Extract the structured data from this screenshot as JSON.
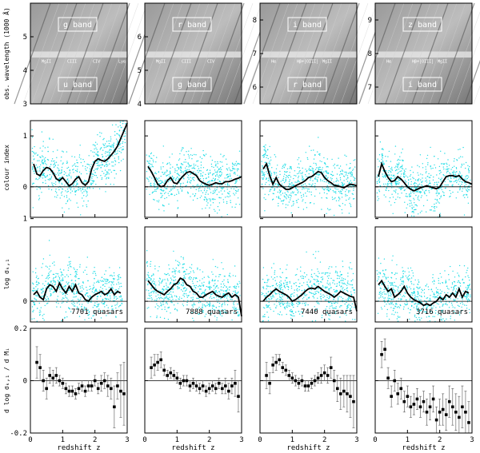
{
  "chart_data": {
    "type": "scatter",
    "columns": [
      {
        "band_pair": "u-g",
        "top_band": "g band",
        "bottom_band": "u band",
        "quasar_label": "7701 quasars"
      },
      {
        "band_pair": "g-r",
        "top_band": "r band",
        "bottom_band": "g band",
        "quasar_label": "7888 quasars"
      },
      {
        "band_pair": "r-i",
        "top_band": "i band",
        "bottom_band": "r band",
        "quasar_label": "7440 quasars"
      },
      {
        "band_pair": "i-z",
        "top_band": "z band",
        "bottom_band": "i band",
        "quasar_label": "3716 quasars"
      }
    ],
    "row_ylabels": [
      "obs. wavelength (1000 Å)",
      "colour index",
      "log σₖ,₁",
      "d log σₖ,₁ / d Mᵢ"
    ],
    "xlabel": "redshift z",
    "xlim": [
      0,
      3
    ],
    "x_ticks": [
      "0",
      "1",
      "2",
      "3"
    ],
    "wavelength_panels": [
      {
        "ylim": [
          3,
          6
        ],
        "ticks": [
          "3",
          "4",
          "5"
        ],
        "lines": [
          "MgII",
          "CIII",
          "CIV",
          "Lyα NV"
        ]
      },
      {
        "ylim": [
          4,
          7
        ],
        "ticks": [
          "4",
          "5",
          "6"
        ],
        "lines": [
          "MgII",
          "CIII",
          "CIV"
        ]
      },
      {
        "ylim": [
          5.5,
          8.5
        ],
        "ticks": [
          "6",
          "7",
          "8"
        ],
        "lines": [
          "Hα",
          "Hβ+[OIII]",
          "MgII"
        ]
      },
      {
        "ylim": [
          6.5,
          9.5
        ],
        "ticks": [
          "7",
          "8",
          "9"
        ],
        "lines": [
          "Hα",
          "Hβ+[OIII]",
          "MgII"
        ]
      }
    ],
    "colour_index": {
      "ylim": [
        -0.6,
        1.3
      ],
      "ticks": [
        "0",
        "1"
      ],
      "x": [
        0.1,
        0.2,
        0.3,
        0.4,
        0.5,
        0.6,
        0.7,
        0.8,
        0.9,
        1.0,
        1.1,
        1.2,
        1.3,
        1.4,
        1.5,
        1.6,
        1.7,
        1.8,
        1.9,
        2.0,
        2.1,
        2.2,
        2.3,
        2.4,
        2.5,
        2.6,
        2.7,
        2.8,
        2.9,
        3.0
      ],
      "series": [
        {
          "values": [
            0.45,
            0.25,
            0.22,
            0.32,
            0.38,
            0.36,
            0.28,
            0.16,
            0.12,
            0.18,
            0.1,
            0.02,
            0.06,
            0.15,
            0.2,
            0.08,
            0.03,
            0.1,
            0.35,
            0.5,
            0.55,
            0.52,
            0.5,
            0.55,
            0.62,
            0.7,
            0.8,
            0.95,
            1.1,
            1.25
          ]
        },
        {
          "values": [
            0.4,
            0.3,
            0.18,
            0.05,
            0.0,
            0.02,
            0.12,
            0.18,
            0.08,
            0.06,
            0.15,
            0.22,
            0.28,
            0.3,
            0.26,
            0.22,
            0.12,
            0.08,
            0.05,
            0.03,
            0.05,
            0.08,
            0.06,
            0.06,
            0.1,
            0.1,
            0.12,
            0.15,
            0.17,
            0.2
          ]
        },
        {
          "values": [
            0.35,
            0.45,
            0.22,
            0.05,
            0.18,
            0.05,
            0.0,
            -0.05,
            -0.05,
            -0.02,
            0.02,
            0.05,
            0.08,
            0.12,
            0.18,
            0.2,
            0.25,
            0.3,
            0.28,
            0.18,
            0.12,
            0.08,
            0.03,
            0.02,
            0.0,
            -0.02,
            0.02,
            0.05,
            0.04,
            0.02
          ]
        },
        {
          "values": [
            0.2,
            0.45,
            0.3,
            0.18,
            0.1,
            0.12,
            0.2,
            0.15,
            0.08,
            0.0,
            -0.05,
            -0.08,
            -0.05,
            -0.02,
            0.0,
            0.02,
            0.0,
            -0.02,
            -0.04,
            0.0,
            0.1,
            0.2,
            0.22,
            0.22,
            0.2,
            0.22,
            0.15,
            0.1,
            0.08,
            0.05
          ]
        }
      ]
    },
    "log_sigma": {
      "ylim": [
        -0.25,
        0.9
      ],
      "ticks": [
        "0",
        "1"
      ],
      "x": [
        0.1,
        0.2,
        0.3,
        0.4,
        0.5,
        0.6,
        0.7,
        0.8,
        0.9,
        1.0,
        1.1,
        1.2,
        1.3,
        1.4,
        1.5,
        1.6,
        1.7,
        1.8,
        1.9,
        2.0,
        2.1,
        2.2,
        2.3,
        2.4,
        2.5,
        2.6,
        2.7,
        2.8,
        2.9,
        3.0
      ],
      "series": [
        {
          "values": [
            0.08,
            0.12,
            0.05,
            0.02,
            0.15,
            0.2,
            0.18,
            0.12,
            0.22,
            0.15,
            0.1,
            0.18,
            0.12,
            0.2,
            0.1,
            0.08,
            0.02,
            0.0,
            0.05,
            0.08,
            0.1,
            0.12,
            0.08,
            0.1,
            0.15,
            0.08,
            0.12,
            0.1,
            null,
            null
          ]
        },
        {
          "values": [
            0.25,
            0.2,
            0.15,
            0.12,
            0.1,
            0.08,
            0.12,
            0.15,
            0.2,
            0.22,
            0.28,
            0.26,
            0.2,
            0.18,
            0.12,
            0.1,
            0.05,
            0.05,
            0.08,
            0.1,
            0.12,
            0.08,
            0.06,
            0.05,
            0.08,
            0.1,
            0.05,
            0.08,
            0.05,
            -0.18
          ]
        },
        {
          "values": [
            0.0,
            0.05,
            0.08,
            0.12,
            0.15,
            0.12,
            0.1,
            0.08,
            0.05,
            0.0,
            0.02,
            0.05,
            0.08,
            0.12,
            0.15,
            0.16,
            0.15,
            0.18,
            0.15,
            0.12,
            0.1,
            0.08,
            0.05,
            0.08,
            0.12,
            0.1,
            0.08,
            0.06,
            0.05,
            -0.12
          ]
        },
        {
          "values": [
            0.2,
            0.25,
            0.18,
            0.12,
            0.15,
            0.05,
            0.08,
            0.12,
            0.18,
            0.1,
            0.05,
            0.02,
            0.0,
            -0.02,
            -0.05,
            -0.03,
            -0.05,
            -0.02,
            0.0,
            0.05,
            0.02,
            0.08,
            0.05,
            0.1,
            0.05,
            0.15,
            0.05,
            0.12,
            0.1,
            null
          ]
        }
      ]
    },
    "dlog_sigma": {
      "ylim": [
        -0.2,
        0.2
      ],
      "ticks": [
        "-0.2",
        "0",
        "0.2"
      ],
      "x": [
        0.2,
        0.3,
        0.4,
        0.5,
        0.6,
        0.7,
        0.8,
        0.9,
        1.0,
        1.1,
        1.2,
        1.3,
        1.4,
        1.5,
        1.6,
        1.7,
        1.8,
        1.9,
        2.0,
        2.1,
        2.2,
        2.3,
        2.4,
        2.5,
        2.6,
        2.7,
        2.8,
        2.9
      ],
      "series": [
        {
          "values": [
            0.07,
            0.05,
            0.0,
            -0.03,
            0.02,
            0.01,
            0.02,
            0.0,
            -0.01,
            -0.03,
            -0.04,
            -0.04,
            -0.05,
            -0.03,
            -0.02,
            -0.04,
            -0.02,
            -0.02,
            0.0,
            -0.03,
            -0.01,
            0.0,
            -0.02,
            -0.03,
            -0.1,
            -0.02,
            -0.04,
            -0.05
          ],
          "errors": [
            0.06,
            0.05,
            0.04,
            0.04,
            0.03,
            0.03,
            0.03,
            0.02,
            0.02,
            0.02,
            0.02,
            0.02,
            0.02,
            0.02,
            0.02,
            0.02,
            0.02,
            0.02,
            0.02,
            0.02,
            0.03,
            0.03,
            0.04,
            0.04,
            0.08,
            0.05,
            0.1,
            0.12
          ]
        },
        {
          "values": [
            0.05,
            0.06,
            0.07,
            0.08,
            0.04,
            0.02,
            0.03,
            0.02,
            0.01,
            -0.01,
            0.0,
            0.0,
            -0.02,
            -0.01,
            -0.02,
            -0.03,
            -0.02,
            -0.04,
            -0.03,
            -0.02,
            -0.03,
            -0.01,
            -0.03,
            -0.02,
            -0.04,
            -0.02,
            -0.01,
            -0.06
          ],
          "errors": [
            0.04,
            0.04,
            0.03,
            0.03,
            0.02,
            0.02,
            0.02,
            0.02,
            0.02,
            0.02,
            0.02,
            0.02,
            0.02,
            0.02,
            0.02,
            0.02,
            0.02,
            0.02,
            0.02,
            0.02,
            0.02,
            0.02,
            0.02,
            0.03,
            0.03,
            0.03,
            0.05,
            0.06
          ]
        },
        {
          "values": [
            0.02,
            -0.01,
            0.06,
            0.07,
            0.08,
            0.05,
            0.04,
            0.02,
            0.01,
            0.0,
            -0.01,
            0.0,
            -0.02,
            -0.02,
            -0.01,
            0.0,
            0.01,
            0.02,
            0.03,
            0.02,
            0.05,
            0.0,
            -0.03,
            -0.05,
            -0.04,
            -0.05,
            -0.06,
            -0.08
          ],
          "errors": [
            0.05,
            0.04,
            0.03,
            0.03,
            0.02,
            0.02,
            0.02,
            0.02,
            0.02,
            0.02,
            0.02,
            0.02,
            0.02,
            0.02,
            0.02,
            0.02,
            0.02,
            0.03,
            0.03,
            0.03,
            0.04,
            0.04,
            0.05,
            0.06,
            0.06,
            0.07,
            0.08,
            0.1
          ]
        },
        {
          "values": [
            0.1,
            0.12,
            0.01,
            -0.06,
            0.0,
            -0.05,
            -0.03,
            -0.08,
            -0.06,
            -0.1,
            -0.09,
            -0.07,
            -0.1,
            -0.08,
            -0.12,
            -0.1,
            -0.07,
            -0.15,
            -0.12,
            -0.11,
            -0.13,
            -0.08,
            -0.1,
            -0.12,
            -0.14,
            -0.1,
            -0.12,
            -0.16
          ],
          "errors": [
            0.05,
            0.04,
            0.04,
            0.04,
            0.04,
            0.04,
            0.04,
            0.04,
            0.04,
            0.04,
            0.04,
            0.04,
            0.04,
            0.04,
            0.05,
            0.05,
            0.05,
            0.05,
            0.05,
            0.06,
            0.06,
            0.06,
            0.07,
            0.07,
            0.08,
            0.08,
            0.08,
            0.08
          ]
        }
      ]
    }
  }
}
